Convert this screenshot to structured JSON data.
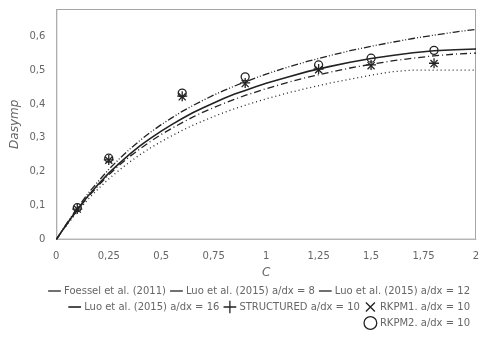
{
  "chart_data": {
    "type": "line",
    "xlabel": "C",
    "ylabel": "Dasymp",
    "xlim": [
      0,
      2
    ],
    "ylim": [
      0,
      0.68
    ],
    "xticks": [
      0,
      {
        "value": 0.25,
        "label": "0,25"
      },
      {
        "value": 0.5,
        "label": "0,5"
      },
      {
        "value": 0.75,
        "label": "0,75"
      },
      1,
      {
        "value": 1.25,
        "label": "1,25"
      },
      {
        "value": 1.5,
        "label": "1,5"
      },
      {
        "value": 1.75,
        "label": "1,75"
      },
      2
    ],
    "yticks": [
      0,
      {
        "value": 0.1,
        "label": "0,1"
      },
      {
        "value": 0.2,
        "label": "0,2"
      },
      {
        "value": 0.3,
        "label": "0,3"
      },
      {
        "value": 0.4,
        "label": "0,4"
      },
      {
        "value": 0.5,
        "label": "0,5"
      },
      {
        "value": 0.6,
        "label": "0,6"
      }
    ],
    "grid": false,
    "legend": "lower right",
    "series": [
      {
        "name": "Foessel et al. (2011)",
        "type": "line",
        "line_style": "dashdotdot",
        "color": "#222222",
        "x": [
          0.0,
          0.02,
          0.05,
          0.1,
          0.15,
          0.2,
          0.25,
          0.3,
          0.35,
          0.4,
          0.45,
          0.5,
          0.55,
          0.6,
          0.65,
          0.7,
          0.75,
          0.8,
          0.85,
          0.9,
          0.95,
          1.0,
          1.1,
          1.2,
          1.3,
          1.4,
          1.5,
          1.6,
          1.7,
          1.8,
          1.9,
          2.0
        ],
        "values": [
          0.0,
          0.019,
          0.048,
          0.093,
          0.135,
          0.172,
          0.207,
          0.238,
          0.267,
          0.293,
          0.317,
          0.339,
          0.359,
          0.378,
          0.395,
          0.411,
          0.426,
          0.44,
          0.453,
          0.465,
          0.477,
          0.488,
          0.508,
          0.526,
          0.542,
          0.557,
          0.57,
          0.582,
          0.593,
          0.603,
          0.612,
          0.62
        ]
      },
      {
        "name": "Luo et al. (2015) a/dx = 8",
        "type": "line",
        "line_style": "dotted",
        "color": "#222222",
        "x": [
          0.0,
          0.02,
          0.05,
          0.1,
          0.15,
          0.2,
          0.25,
          0.3,
          0.35,
          0.4,
          0.45,
          0.5,
          0.55,
          0.6,
          0.65,
          0.7,
          0.75,
          0.8,
          0.85,
          0.9,
          0.95,
          1.0,
          1.1,
          1.2,
          1.3,
          1.4,
          1.5,
          1.6,
          1.7,
          1.8,
          1.9,
          2.0
        ],
        "values": [
          0.0,
          0.018,
          0.043,
          0.082,
          0.118,
          0.15,
          0.179,
          0.205,
          0.229,
          0.251,
          0.271,
          0.289,
          0.306,
          0.322,
          0.337,
          0.35,
          0.363,
          0.375,
          0.386,
          0.396,
          0.406,
          0.415,
          0.432,
          0.447,
          0.461,
          0.473,
          0.485,
          0.495,
          0.5,
          0.5,
          0.5,
          0.5
        ]
      },
      {
        "name": "Luo et al. (2015) a/dx = 12",
        "type": "line",
        "line_style": "dashdot",
        "color": "#222222",
        "x": [
          0.0,
          0.02,
          0.05,
          0.1,
          0.15,
          0.2,
          0.25,
          0.3,
          0.35,
          0.4,
          0.45,
          0.5,
          0.55,
          0.6,
          0.65,
          0.7,
          0.75,
          0.8,
          0.85,
          0.9,
          0.95,
          1.0,
          1.1,
          1.2,
          1.3,
          1.4,
          1.5,
          1.6,
          1.7,
          1.8,
          1.9,
          2.0
        ],
        "values": [
          0.0,
          0.019,
          0.045,
          0.087,
          0.125,
          0.159,
          0.191,
          0.219,
          0.245,
          0.268,
          0.29,
          0.31,
          0.328,
          0.345,
          0.361,
          0.376,
          0.389,
          0.402,
          0.414,
          0.425,
          0.435,
          0.445,
          0.463,
          0.479,
          0.493,
          0.506,
          0.517,
          0.527,
          0.535,
          0.542,
          0.547,
          0.55
        ]
      },
      {
        "name": "Luo et al. (2015) a/dx = 16",
        "type": "line",
        "line_style": "solid",
        "color": "#222222",
        "x": [
          0.0,
          0.02,
          0.05,
          0.1,
          0.15,
          0.2,
          0.25,
          0.3,
          0.35,
          0.4,
          0.45,
          0.5,
          0.55,
          0.6,
          0.65,
          0.7,
          0.75,
          0.8,
          0.85,
          0.9,
          0.95,
          1.0,
          1.1,
          1.2,
          1.3,
          1.4,
          1.5,
          1.6,
          1.7,
          1.8,
          1.9,
          2.0
        ],
        "values": [
          0.0,
          0.019,
          0.046,
          0.089,
          0.128,
          0.163,
          0.196,
          0.225,
          0.252,
          0.277,
          0.299,
          0.32,
          0.339,
          0.357,
          0.374,
          0.389,
          0.403,
          0.417,
          0.429,
          0.44,
          0.451,
          0.461,
          0.479,
          0.496,
          0.51,
          0.523,
          0.534,
          0.543,
          0.551,
          0.557,
          0.56,
          0.562
        ]
      },
      {
        "name": "STRUCTURED a/dx = 10",
        "type": "scatter",
        "marker": "plus",
        "color": "#222222",
        "x": [
          0.1,
          0.25,
          0.6,
          0.9,
          1.25,
          1.5,
          1.8
        ],
        "values": [
          0.09,
          0.235,
          0.423,
          0.462,
          0.503,
          0.515,
          0.52
        ]
      },
      {
        "name": "RKPM1. a/dx = 10",
        "type": "scatter",
        "marker": "x",
        "color": "#222222",
        "x": [
          0.1,
          0.25,
          0.6,
          0.9,
          1.25,
          1.5,
          1.8
        ],
        "values": [
          0.09,
          0.234,
          0.421,
          0.46,
          0.501,
          0.513,
          0.519
        ]
      },
      {
        "name": "RKPM2. a/dx = 10",
        "type": "scatter",
        "marker": "circle",
        "color": "#222222",
        "x": [
          0.1,
          0.25,
          0.6,
          0.9,
          1.25,
          1.5,
          1.8
        ],
        "values": [
          0.094,
          0.24,
          0.432,
          0.48,
          0.515,
          0.535,
          0.558
        ]
      }
    ]
  }
}
